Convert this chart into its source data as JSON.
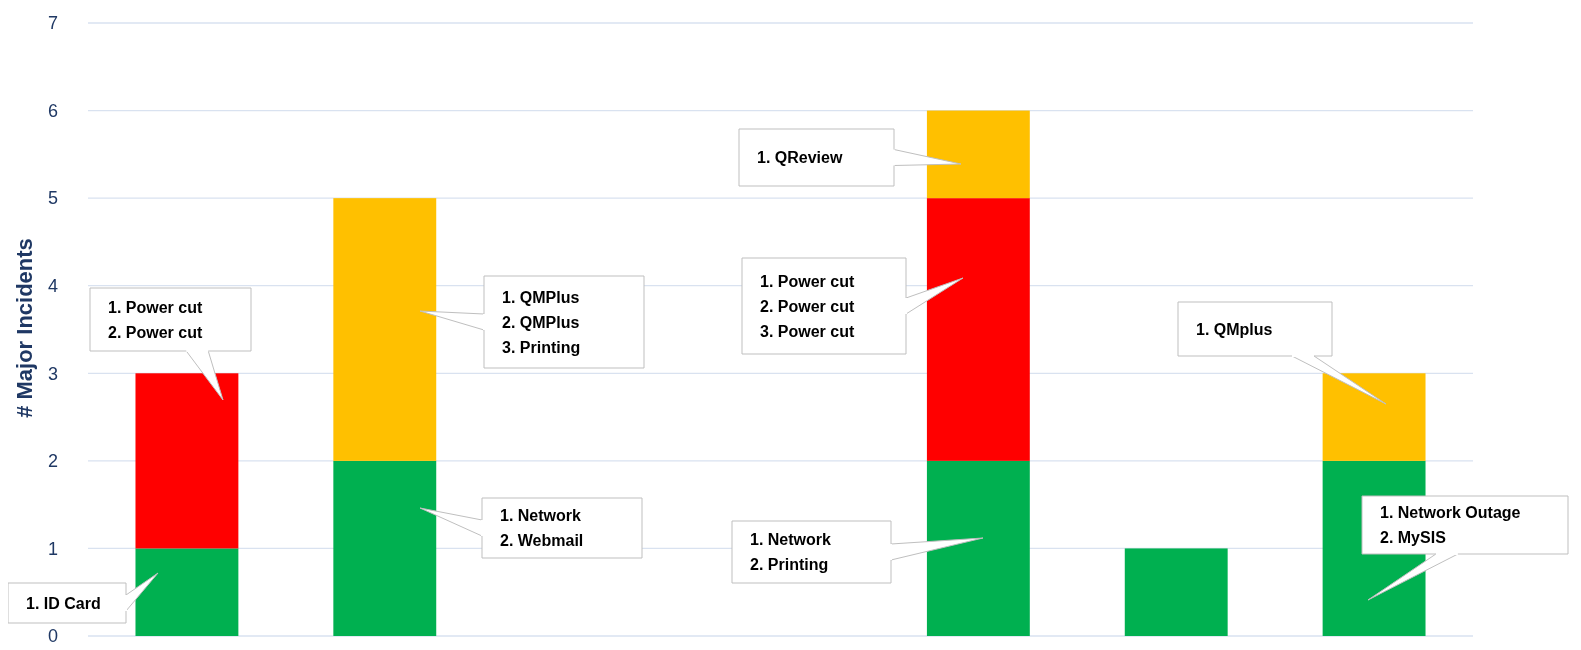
{
  "chart_data": {
    "type": "bar",
    "stacked": true,
    "ylabel": "# Major Incidents",
    "categories": [
      null,
      null,
      null,
      null,
      null,
      null,
      null
    ],
    "series": [
      {
        "color": "#00b050",
        "values": [
          1,
          2,
          null,
          null,
          2,
          1,
          2
        ]
      },
      {
        "color": "#ff0000",
        "values": [
          2,
          0,
          null,
          null,
          3,
          0,
          0
        ]
      },
      {
        "color": "#ffc000",
        "values": [
          0,
          3,
          null,
          null,
          1,
          0,
          1
        ]
      }
    ],
    "ylim": [
      0,
      7
    ],
    "yticks": [
      0,
      1,
      2,
      3,
      4,
      5,
      6,
      7
    ],
    "grid": "y",
    "annotations": [
      "1. Power cut\n2. Power cut",
      "1. ID Card",
      "1. QMPlus\n2. QMPlus\n3. Printing",
      "1. Network\n2. Webmail",
      "1. QReview",
      "1. Power cut\n2. Power cut\n3. Power cut",
      "1. Network\n2. Printing",
      "1. QMplus",
      "1. Network Outage\n2. MySIS"
    ]
  }
}
